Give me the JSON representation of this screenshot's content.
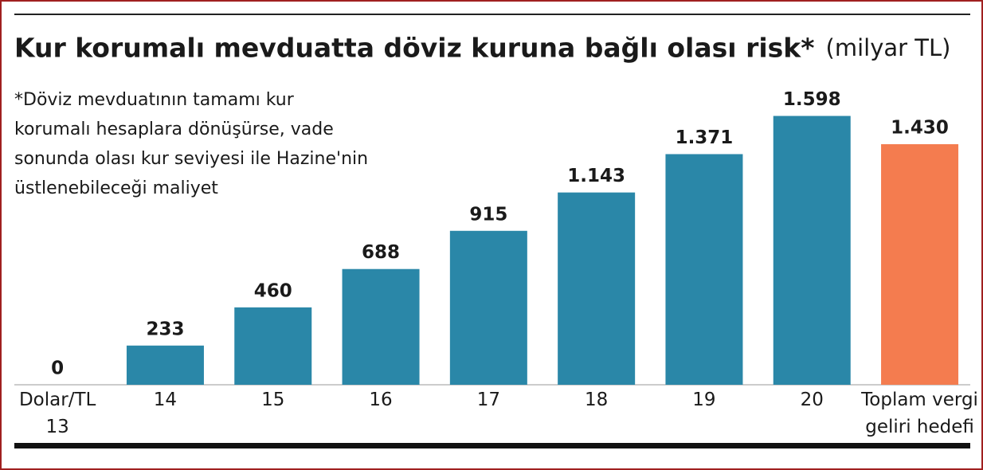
{
  "chart_data": {
    "type": "bar",
    "title": "Kur korumalı mevduatta döviz kuruna bağlı olası risk*",
    "subtitle": "(milyar TL)",
    "annotation": [
      "*Döviz mevduatının tamamı kur",
      "korumalı hesaplara dönüşürse, vade",
      "sonunda olası kur seviyesi ile Hazine'nin",
      "üstlenebileceği maliyet"
    ],
    "categories": [
      "Dolar/TL\n13",
      "14",
      "15",
      "16",
      "17",
      "18",
      "19",
      "20",
      "Toplam vergi\ngeliri hedefi"
    ],
    "values": [
      0,
      233,
      460,
      688,
      915,
      1143,
      1371,
      1598,
      1430
    ],
    "value_labels": [
      "0",
      "233",
      "460",
      "688",
      "915",
      "1.143",
      "1.371",
      "1.598",
      "1.430"
    ],
    "colors": [
      "#2a87a8",
      "#2a87a8",
      "#2a87a8",
      "#2a87a8",
      "#2a87a8",
      "#2a87a8",
      "#2a87a8",
      "#2a87a8",
      "#f47c4f"
    ],
    "ylim": [
      0,
      1700
    ]
  }
}
